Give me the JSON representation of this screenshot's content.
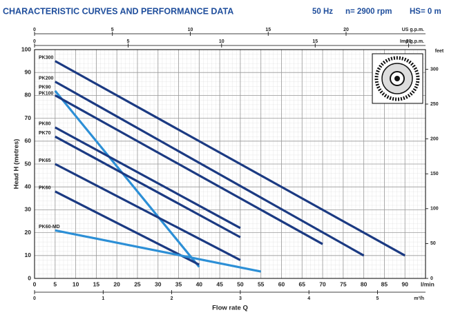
{
  "chart_data": {
    "type": "line",
    "title": "CHARACTERISTIC CURVES AND PERFORMANCE DATA",
    "subtitle_items": [
      "50 Hz",
      "n= 2900 rpm",
      "HS= 0 m"
    ],
    "xlabel": "Flow rate Q",
    "xunit": "l/min",
    "ylabel": "Head H (metres)",
    "y2label": "feet",
    "xlim": [
      0,
      95
    ],
    "xticks": [
      0,
      5,
      10,
      15,
      20,
      25,
      30,
      35,
      40,
      45,
      50,
      55,
      60,
      65,
      70,
      75,
      80,
      85,
      90
    ],
    "ylim": [
      0,
      100
    ],
    "yticks": [
      0,
      10,
      20,
      30,
      40,
      50,
      60,
      70,
      80,
      90,
      100
    ],
    "y2lim": [
      0,
      328.08
    ],
    "y2ticks": [
      0,
      50,
      100,
      150,
      200,
      250,
      300
    ],
    "extra_x_axes": [
      {
        "label": "US g.p.m.",
        "position": "top",
        "lim": [
          0,
          25.1
        ],
        "ticks": [
          0,
          5,
          10,
          15,
          20
        ]
      },
      {
        "label": "Imp g.p.m.",
        "position": "top",
        "lim": [
          0,
          20.9
        ],
        "ticks": [
          0,
          5,
          10,
          15,
          20
        ]
      },
      {
        "label": "m³/h",
        "position": "bottom",
        "lim": [
          0,
          5.7
        ],
        "ticks": [
          0,
          1,
          2,
          3,
          4,
          5
        ]
      }
    ],
    "grid": true,
    "series": [
      {
        "name": "PK300",
        "color": "#1b3a82",
        "x": [
          5,
          90
        ],
        "values": [
          95,
          10
        ]
      },
      {
        "name": "PK200",
        "color": "#1b3a82",
        "x": [
          5,
          80
        ],
        "values": [
          86,
          10
        ]
      },
      {
        "name": "PK90",
        "color": "#2c8fd6",
        "x": [
          5,
          40
        ],
        "values": [
          82,
          5
        ]
      },
      {
        "name": "PK100",
        "color": "#1b3a82",
        "x": [
          5,
          70
        ],
        "values": [
          80,
          15
        ]
      },
      {
        "name": "PK80",
        "color": "#1b3a82",
        "x": [
          5,
          50
        ],
        "values": [
          66,
          22
        ]
      },
      {
        "name": "PK70",
        "color": "#1b3a82",
        "x": [
          5,
          50
        ],
        "values": [
          62,
          18
        ]
      },
      {
        "name": "PK65",
        "color": "#1b3a82",
        "x": [
          5,
          50
        ],
        "values": [
          50,
          8
        ]
      },
      {
        "name": "PK60",
        "color": "#1b3a82",
        "x": [
          5,
          40
        ],
        "values": [
          38,
          6
        ]
      },
      {
        "name": "PK60-MD",
        "color": "#2c8fd6",
        "x": [
          5,
          55
        ],
        "values": [
          21,
          3
        ]
      }
    ]
  }
}
